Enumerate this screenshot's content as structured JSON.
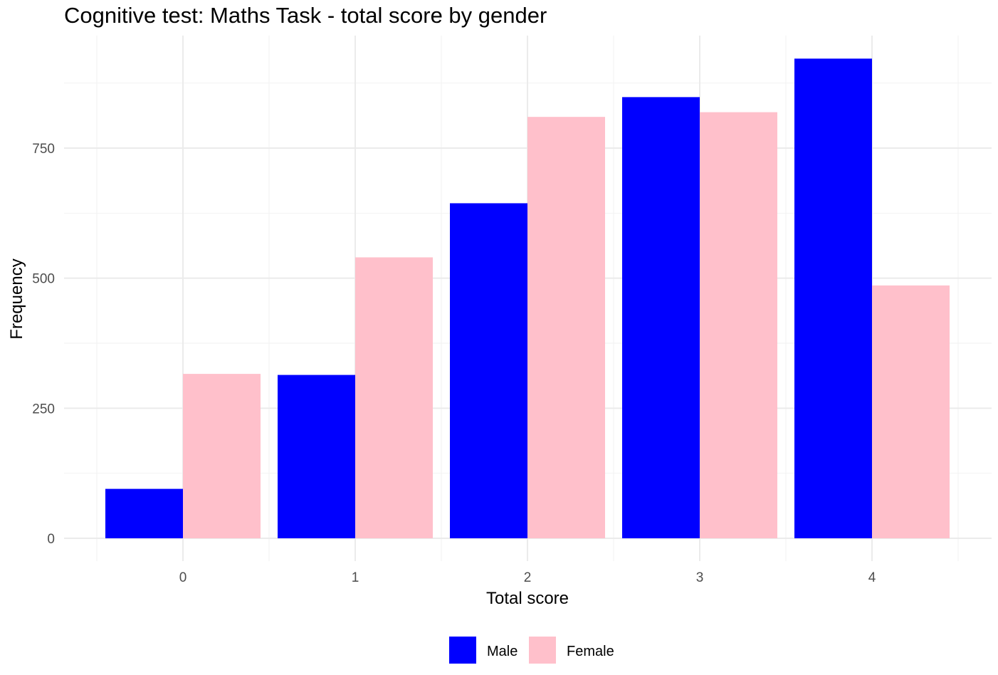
{
  "chart_data": {
    "type": "bar",
    "title": "Cognitive test: Maths Task - total score by gender",
    "xlabel": "Total score",
    "ylabel": "Frequency",
    "categories": [
      "0",
      "1",
      "2",
      "3",
      "4"
    ],
    "series": [
      {
        "name": "Male",
        "color": "#0000FF",
        "values": [
          95,
          314,
          644,
          848,
          922
        ]
      },
      {
        "name": "Female",
        "color": "#FFC0CB",
        "values": [
          316,
          540,
          810,
          819,
          486
        ]
      }
    ],
    "ylim": [
      -45,
      920
    ],
    "yticks": [
      0,
      250,
      500,
      750
    ],
    "y_minor_ticks": [
      125,
      375,
      625,
      875
    ],
    "grid": true,
    "legend_position": "bottom"
  }
}
